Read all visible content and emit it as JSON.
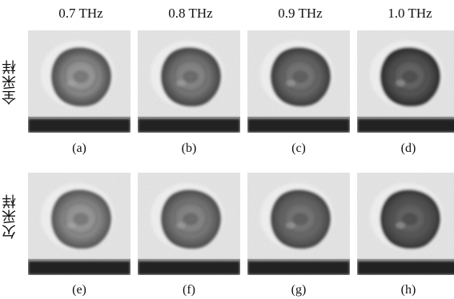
{
  "columns": [
    "0.7 THz",
    "0.8 THz",
    "0.9 THz",
    "1.0 THz"
  ],
  "rows": [
    {
      "label": "全采样",
      "captions": [
        "(a)",
        "(b)",
        "(c)",
        "(d)"
      ]
    },
    {
      "label": "欠采样",
      "captions": [
        "(e)",
        "(f)",
        "(g)",
        "(h)"
      ]
    }
  ]
}
